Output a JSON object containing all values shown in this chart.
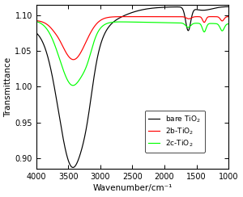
{
  "xlabel": "Wavenumber/cm⁻¹",
  "ylabel": "Transmittance",
  "xlim": [
    4000,
    1000
  ],
  "ylim": [
    0.885,
    1.115
  ],
  "yticks": [
    0.9,
    0.95,
    1.0,
    1.05,
    1.1
  ],
  "xticks": [
    4000,
    3500,
    3000,
    2500,
    2000,
    1500,
    1000
  ],
  "legend": [
    {
      "label": "bare TiO$_2$",
      "color": "black"
    },
    {
      "label": "2b-TiO$_2$",
      "color": "red"
    },
    {
      "label": "2c-TiO$_2$",
      "color": "lime"
    }
  ]
}
